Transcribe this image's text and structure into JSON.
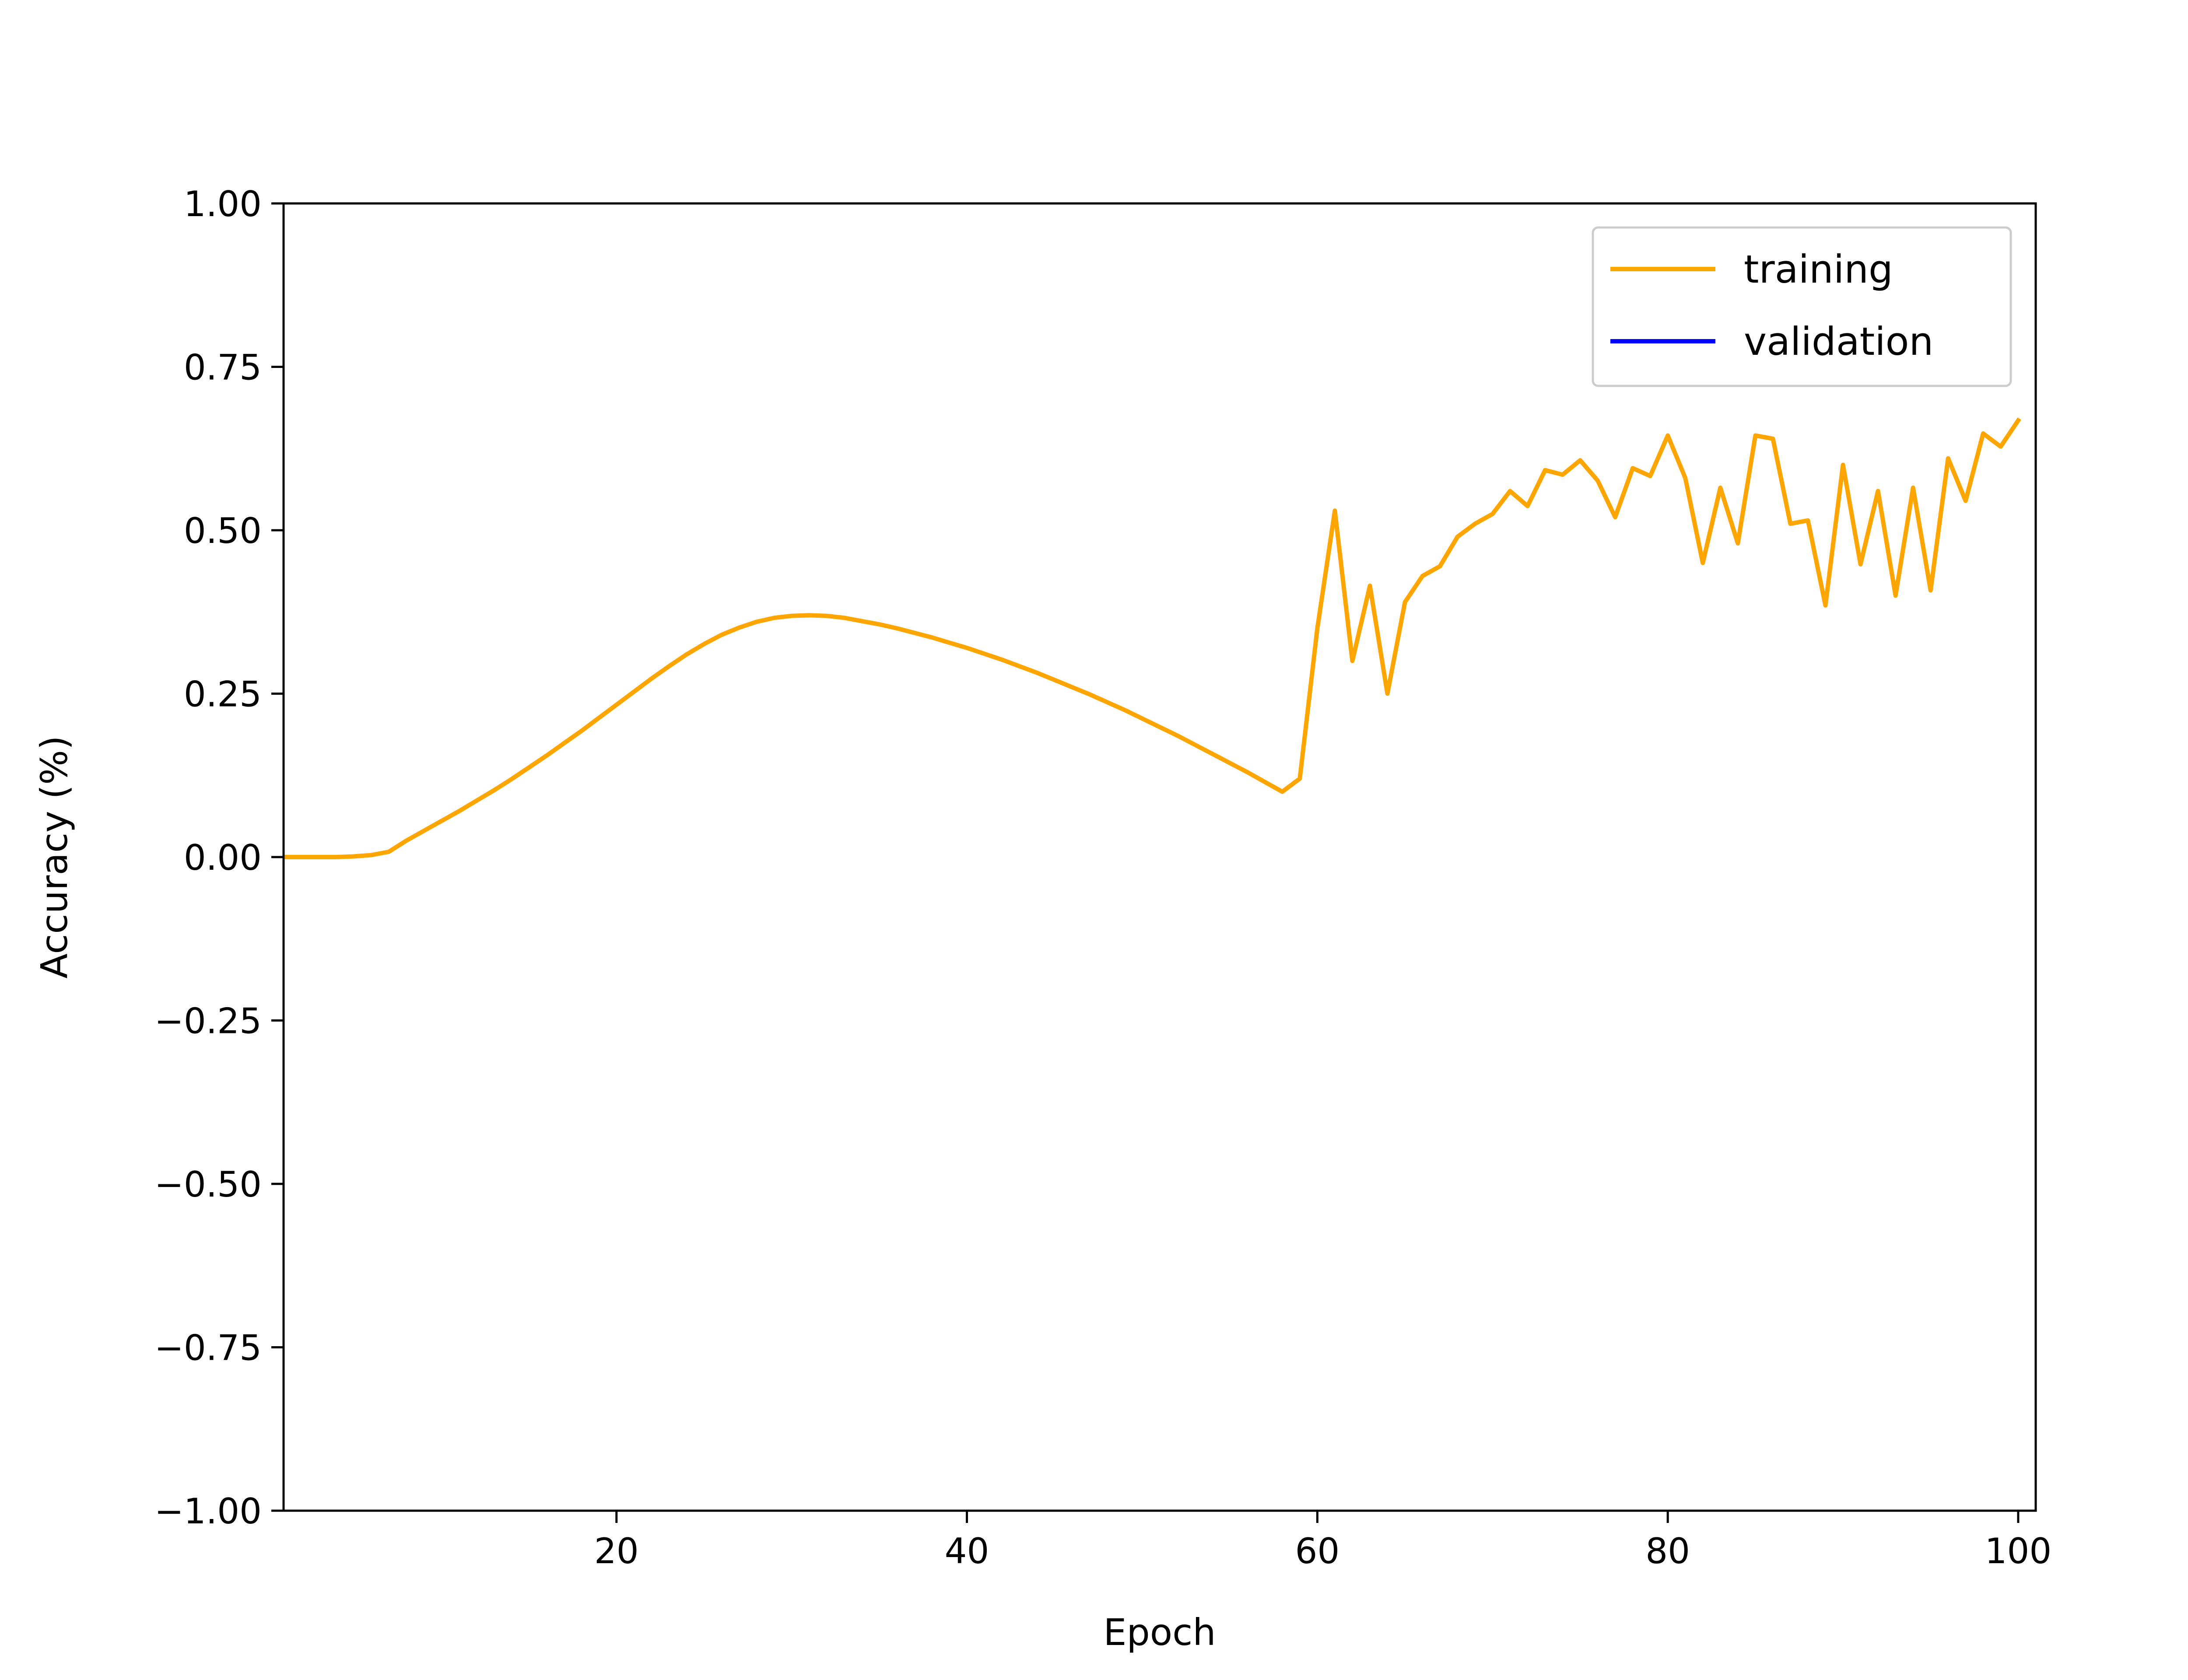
{
  "chart_data": {
    "type": "line",
    "title": "",
    "xlabel": "Epoch",
    "ylabel": "Accuracy (%)",
    "xlim": [
      1,
      101
    ],
    "ylim": [
      -1.0,
      1.0
    ],
    "xticks": [
      20,
      40,
      60,
      80,
      100
    ],
    "yticks": [
      -1.0,
      -0.75,
      -0.5,
      -0.25,
      0.0,
      0.25,
      0.5,
      0.75,
      1.0
    ],
    "ytick_labels": [
      "−1.00",
      "−0.75",
      "−0.50",
      "−0.25",
      "0.00",
      "0.25",
      "0.50",
      "0.75",
      "1.00"
    ],
    "xtick_labels": [
      "20",
      "40",
      "60",
      "80",
      "100"
    ],
    "grid": false,
    "legend_position": "top-right",
    "series": [
      {
        "name": "training",
        "color": "#FFA500",
        "x": [
          1,
          2,
          3,
          4,
          5,
          6,
          7,
          8,
          9,
          10,
          11,
          12,
          13,
          14,
          15,
          16,
          17,
          18,
          19,
          20,
          21,
          22,
          23,
          24,
          25,
          26,
          27,
          28,
          29,
          30,
          31,
          32,
          33,
          34,
          35,
          36,
          37,
          38,
          39,
          40,
          41,
          42,
          43,
          44,
          45,
          46,
          47,
          48,
          49,
          50,
          51,
          52,
          53,
          54,
          55,
          56,
          57,
          58,
          59,
          60,
          61,
          62,
          63,
          64,
          65,
          66,
          67,
          68,
          69,
          70,
          71,
          72,
          73,
          74,
          75,
          76,
          77,
          78,
          79,
          80,
          81,
          82,
          83,
          84,
          85,
          86,
          87,
          88,
          89,
          90,
          91,
          92,
          93,
          94,
          95,
          96,
          97,
          98,
          99,
          100
        ],
        "y": [
          0.0,
          0.0,
          0.0,
          0.0,
          0.001,
          0.003,
          0.008,
          0.025,
          0.04,
          0.055,
          0.07,
          0.086,
          0.102,
          0.119,
          0.137,
          0.155,
          0.174,
          0.193,
          0.213,
          0.233,
          0.253,
          0.273,
          0.292,
          0.31,
          0.326,
          0.34,
          0.351,
          0.36,
          0.366,
          0.369,
          0.37,
          0.369,
          0.366,
          0.361,
          0.356,
          0.35,
          0.343,
          0.336,
          0.328,
          0.32,
          0.311,
          0.302,
          0.292,
          0.282,
          0.271,
          0.26,
          0.249,
          0.237,
          0.225,
          0.212,
          0.199,
          0.186,
          0.172,
          0.158,
          0.144,
          0.13,
          0.115,
          0.1,
          0.12,
          0.35,
          0.53,
          0.3,
          0.415,
          0.25,
          0.39,
          0.43,
          0.445,
          0.49,
          0.51,
          0.525,
          0.56,
          0.537,
          0.592,
          0.585,
          0.607,
          0.576,
          0.52,
          0.595,
          0.583,
          0.645,
          0.58,
          0.45,
          0.565,
          0.48,
          0.645,
          0.64,
          0.51,
          0.515,
          0.385,
          0.6,
          0.448,
          0.56,
          0.4,
          0.565,
          0.408,
          0.61,
          0.545,
          0.648,
          0.628,
          0.668
        ]
      },
      {
        "name": "validation",
        "color": "#0000FF",
        "x": [],
        "y": []
      }
    ]
  }
}
